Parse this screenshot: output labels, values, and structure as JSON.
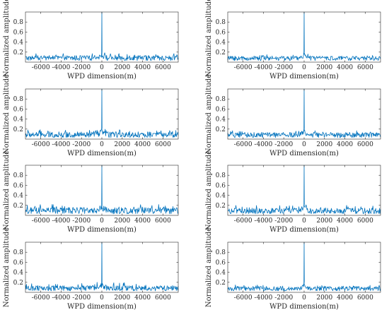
{
  "chart_data": [
    {
      "type": "line",
      "panel": "row1-left",
      "xlabel": "WPD dimension(m)",
      "ylabel": "Normalized amplitude",
      "xlim": [
        -7500,
        7500
      ],
      "ylim": [
        0,
        1
      ],
      "xticks": [
        -6000,
        -4000,
        -2000,
        0,
        2000,
        4000,
        6000
      ],
      "yticks": [
        0.2,
        0.4,
        0.6,
        0.8
      ],
      "grid": false,
      "series": [
        {
          "peak_x": 0,
          "peak_y": 1.0,
          "noise_floor_mean": 0.08,
          "noise_floor_max": 0.17
        }
      ]
    },
    {
      "type": "line",
      "panel": "row1-right",
      "xlabel": "WPD dimension(m)",
      "ylabel": "Normalized amplitude",
      "xlim": [
        -7500,
        7500
      ],
      "ylim": [
        0,
        1
      ],
      "xticks": [
        -6000,
        -4000,
        -2000,
        0,
        2000,
        4000,
        6000
      ],
      "yticks": [
        0.2,
        0.4,
        0.6,
        0.8
      ],
      "grid": false,
      "series": [
        {
          "peak_x": 0,
          "peak_y": 1.0,
          "noise_floor_mean": 0.07,
          "noise_floor_max": 0.15
        }
      ]
    },
    {
      "type": "line",
      "panel": "row2-left",
      "xlabel": "WPD dimension(m)",
      "ylabel": "Normalized amplitude",
      "xlim": [
        -7500,
        7500
      ],
      "ylim": [
        0,
        1
      ],
      "xticks": [
        -6000,
        -4000,
        -2000,
        0,
        2000,
        4000,
        6000
      ],
      "yticks": [
        0.2,
        0.4,
        0.6,
        0.8
      ],
      "grid": false,
      "series": [
        {
          "peak_x": 0,
          "peak_y": 1.0,
          "noise_floor_mean": 0.09,
          "noise_floor_max": 0.2
        }
      ]
    },
    {
      "type": "line",
      "panel": "row2-right",
      "xlabel": "WPD dimension(m)",
      "ylabel": "Normalized amplitude",
      "xlim": [
        -7500,
        7500
      ],
      "ylim": [
        0,
        1
      ],
      "xticks": [
        -6000,
        -4000,
        -2000,
        0,
        2000,
        4000,
        6000
      ],
      "yticks": [
        0.2,
        0.4,
        0.6,
        0.8
      ],
      "grid": false,
      "series": [
        {
          "peak_x": 0,
          "peak_y": 1.0,
          "noise_floor_mean": 0.08,
          "noise_floor_max": 0.17
        }
      ]
    },
    {
      "type": "line",
      "panel": "row3-left",
      "xlabel": "WPD dimension(m)",
      "ylabel": "Normalized amplitude",
      "xlim": [
        -7500,
        7500
      ],
      "ylim": [
        0,
        1
      ],
      "xticks": [
        -6000,
        -4000,
        -2000,
        0,
        2000,
        4000,
        6000
      ],
      "yticks": [
        0.2,
        0.4,
        0.6,
        0.8
      ],
      "grid": false,
      "series": [
        {
          "peak_x": 0,
          "peak_y": 1.0,
          "noise_floor_mean": 0.1,
          "noise_floor_max": 0.22
        }
      ]
    },
    {
      "type": "line",
      "panel": "row3-right",
      "xlabel": "WPD dimension(m)",
      "ylabel": "Normalized amplitude",
      "xlim": [
        -7500,
        7500
      ],
      "ylim": [
        0,
        1
      ],
      "xticks": [
        -6000,
        -4000,
        -2000,
        0,
        2000,
        4000,
        6000
      ],
      "yticks": [
        0.2,
        0.4,
        0.6,
        0.8
      ],
      "grid": false,
      "series": [
        {
          "peak_x": 0,
          "peak_y": 1.0,
          "noise_floor_mean": 0.09,
          "noise_floor_max": 0.2
        }
      ]
    },
    {
      "type": "line",
      "panel": "row4-left",
      "xlabel": "WPD dimension(m)",
      "ylabel": "Normalized amplitude",
      "xlim": [
        -7500,
        7500
      ],
      "ylim": [
        0,
        1
      ],
      "xticks": [
        -6000,
        -4000,
        -2000,
        0,
        2000,
        4000,
        6000
      ],
      "yticks": [
        0.2,
        0.4,
        0.6,
        0.8
      ],
      "grid": false,
      "series": [
        {
          "peak_x": 0,
          "peak_y": 1.0,
          "noise_floor_mean": 0.08,
          "noise_floor_max": 0.2
        }
      ]
    },
    {
      "type": "line",
      "panel": "row4-right",
      "xlabel": "WPD dimension(m)",
      "ylabel": "Normalized amplitude",
      "xlim": [
        -7500,
        7500
      ],
      "ylim": [
        0,
        1
      ],
      "xticks": [
        -6000,
        -4000,
        -2000,
        0,
        2000,
        4000,
        6000
      ],
      "yticks": [
        0.2,
        0.4,
        0.6,
        0.8
      ],
      "grid": false,
      "series": [
        {
          "peak_x": 0,
          "peak_y": 1.0,
          "noise_floor_mean": 0.07,
          "noise_floor_max": 0.15
        }
      ]
    }
  ],
  "colors": {
    "line": "#0072BD",
    "axis": "#262626",
    "background": "#ffffff"
  }
}
